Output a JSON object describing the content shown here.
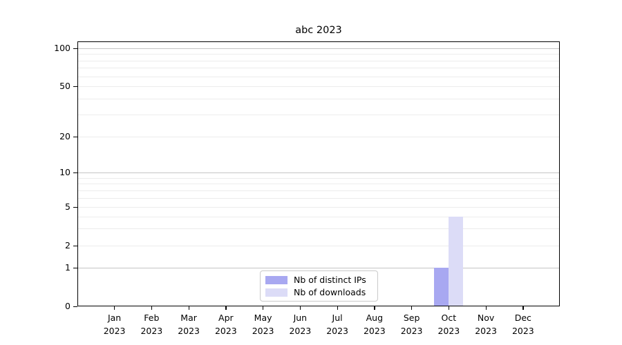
{
  "chart_data": {
    "type": "bar",
    "title": "abc 2023",
    "categories": [
      "Jan 2023",
      "Feb 2023",
      "Mar 2023",
      "Apr 2023",
      "May 2023",
      "Jun 2023",
      "Jul 2023",
      "Aug 2023",
      "Sep 2023",
      "Oct 2023",
      "Nov 2023",
      "Dec 2023"
    ],
    "series": [
      {
        "name": "Nb of distinct IPs",
        "color": "#a8a8f1",
        "values": [
          0,
          0,
          0,
          0,
          0,
          0,
          0,
          0,
          0,
          1,
          0,
          0
        ]
      },
      {
        "name": "Nb of downloads",
        "color": "#dcdcf7",
        "values": [
          0,
          0,
          0,
          0,
          0,
          0,
          0,
          0,
          0,
          4,
          0,
          0
        ]
      }
    ],
    "xlabel": "",
    "ylabel": "",
    "yticks": [
      0,
      1,
      2,
      5,
      10,
      20,
      50,
      100
    ],
    "ylim": [
      0,
      115
    ],
    "yscale": "log above 1, linear between 0 and 1",
    "grid": "horizontal, major and minor",
    "legend_position": "bottom-center inside plot",
    "colors": {
      "major_gridline": "#c4c4c4",
      "minor_gridline": "#ececec",
      "axis": "#000000",
      "background": "#ffffff"
    }
  }
}
